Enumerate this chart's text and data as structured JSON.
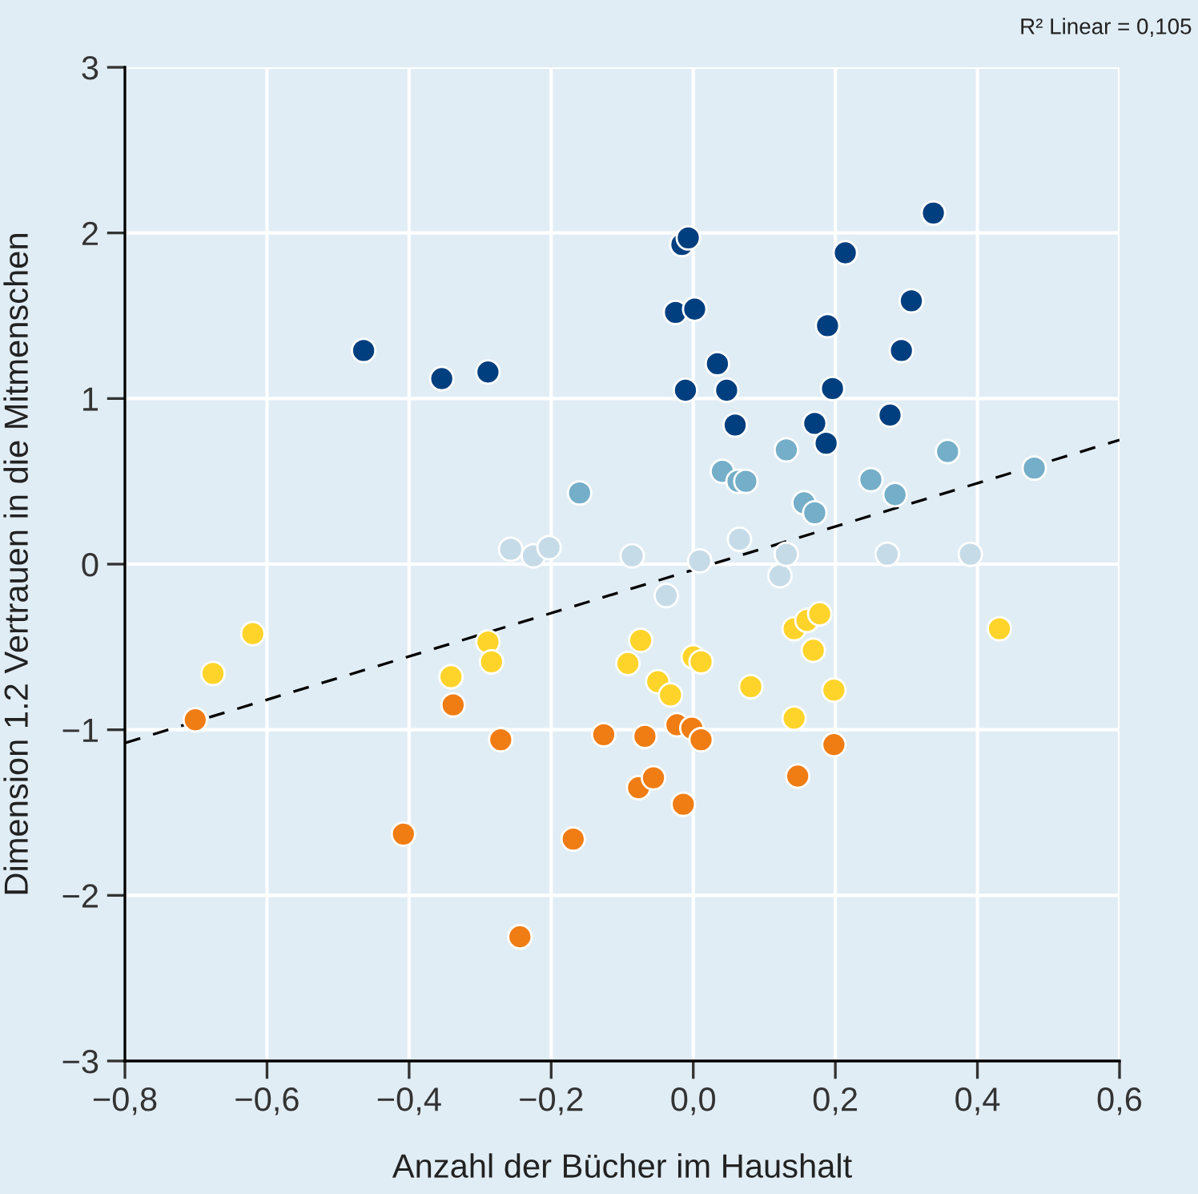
{
  "chart_data": {
    "type": "scatter",
    "xlabel": "Anzahl der Bücher im Haushalt",
    "ylabel": "Dimension 1.2 Vertrauen in die Mitmenschen",
    "annotations": [
      "R² Linear = 0,105"
    ],
    "xlim": [
      -0.8,
      0.6
    ],
    "ylim": [
      -3,
      3
    ],
    "xticks": [
      {
        "value": -0.8,
        "label": "−0,8"
      },
      {
        "value": -0.6,
        "label": "−0,6"
      },
      {
        "value": -0.4,
        "label": "−0,4"
      },
      {
        "value": -0.2,
        "label": "−0,2"
      },
      {
        "value": 0,
        "label": "0,0"
      },
      {
        "value": 0.2,
        "label": "0,2"
      },
      {
        "value": 0.4,
        "label": "0,4"
      },
      {
        "value": 0.6,
        "label": "0,6"
      }
    ],
    "yticks": [
      {
        "value": -3,
        "label": "−3"
      },
      {
        "value": -2,
        "label": "−2"
      },
      {
        "value": -1,
        "label": "−1"
      },
      0,
      1,
      2,
      3
    ],
    "grid": true,
    "marker": "circle",
    "series": [
      {
        "color": "#003f7f",
        "x": [
          -0.464,
          -0.354,
          -0.289,
          -0.016,
          -0.007,
          -0.025,
          0.002,
          -0.011,
          0.034,
          0.047,
          0.059,
          0.338,
          0.214,
          0.307,
          0.189,
          0.196,
          0.171,
          0.187,
          0.277,
          0.293
        ],
        "values": [
          1.29,
          1.12,
          1.16,
          1.93,
          1.97,
          1.52,
          1.54,
          1.05,
          1.21,
          1.05,
          0.84,
          2.12,
          1.88,
          1.59,
          1.44,
          1.06,
          0.85,
          0.73,
          0.9,
          1.29
        ]
      },
      {
        "color": "#74aec8",
        "x": [
          -0.16,
          0.041,
          0.063,
          0.074,
          0.131,
          0.156,
          0.171,
          0.25,
          0.284,
          0.358,
          0.48
        ],
        "values": [
          0.43,
          0.56,
          0.5,
          0.5,
          0.69,
          0.37,
          0.31,
          0.51,
          0.42,
          0.68,
          0.58
        ]
      },
      {
        "color": "#c6dbe8",
        "x": [
          -0.257,
          -0.225,
          -0.203,
          -0.086,
          0.009,
          -0.038,
          0.065,
          0.122,
          0.131,
          0.273,
          0.39
        ],
        "values": [
          0.09,
          0.05,
          0.1,
          0.05,
          0.02,
          -0.19,
          0.15,
          -0.07,
          0.06,
          0.06,
          0.06
        ]
      },
      {
        "color": "#ffd42a",
        "x": [
          -0.676,
          -0.62,
          -0.341,
          -0.289,
          -0.284,
          -0.092,
          -0.074,
          -0.05,
          -0.032,
          0.0,
          0.011,
          0.081,
          0.142,
          0.16,
          0.178,
          0.169,
          0.198,
          0.142,
          0.431
        ],
        "values": [
          -0.66,
          -0.42,
          -0.68,
          -0.47,
          -0.59,
          -0.6,
          -0.46,
          -0.71,
          -0.79,
          -0.56,
          -0.59,
          -0.74,
          -0.39,
          -0.34,
          -0.3,
          -0.52,
          -0.76,
          -0.93,
          -0.39
        ]
      },
      {
        "color": "#f07c14",
        "x": [
          -0.701,
          -0.338,
          -0.271,
          -0.408,
          -0.169,
          -0.244,
          -0.126,
          -0.068,
          -0.023,
          -0.002,
          0.011,
          -0.077,
          -0.056,
          -0.014,
          0.147,
          0.198
        ],
        "values": [
          -0.94,
          -0.85,
          -1.06,
          -1.63,
          -1.66,
          -2.25,
          -1.03,
          -1.04,
          -0.97,
          -0.99,
          -1.06,
          -1.35,
          -1.29,
          -1.45,
          -1.28,
          -1.09
        ]
      },
      {
        "type": "line",
        "color": "#000000",
        "line_style": "dashed",
        "marker": "none",
        "x": [
          -0.8,
          0.6
        ],
        "values": [
          -1.08,
          0.75
        ]
      }
    ]
  }
}
